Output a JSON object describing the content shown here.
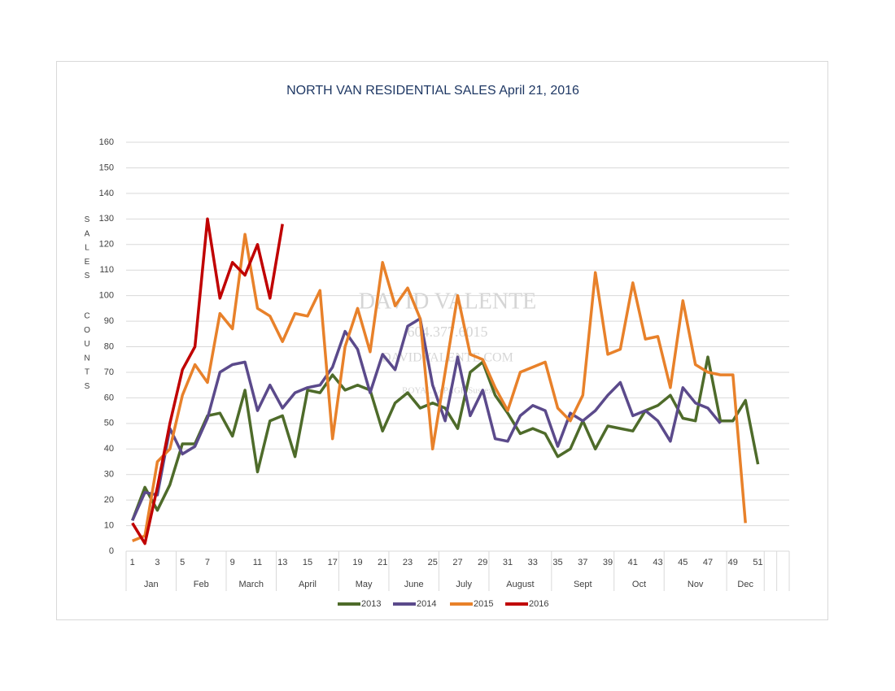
{
  "chart_data": {
    "type": "line",
    "title": "NORTH VAN RESIDENTIAL SALES April 21, 2016",
    "y_label": "SALES COUNTS",
    "watermark": [
      "DAVID VALENTE",
      "604.377.6015",
      "DAVIDVALENTE.COM",
      "ROYAL LePAGE Sussex"
    ],
    "categories": [
      1,
      null,
      3,
      null,
      5,
      null,
      7,
      null,
      9,
      null,
      11,
      null,
      13,
      null,
      15,
      null,
      17,
      null,
      19,
      null,
      21,
      null,
      23,
      null,
      25,
      null,
      27,
      null,
      29,
      null,
      31,
      null,
      33,
      null,
      35,
      null,
      37,
      null,
      39,
      null,
      41,
      null,
      43,
      null,
      45,
      null,
      47,
      null,
      49,
      null,
      51,
      null,
      null
    ],
    "months": [
      {
        "label": "Jan",
        "weeks": 4
      },
      {
        "label": "Feb",
        "weeks": 4
      },
      {
        "label": "March",
        "weeks": 4
      },
      {
        "label": "April",
        "weeks": 5
      },
      {
        "label": "May",
        "weeks": 4
      },
      {
        "label": "June",
        "weeks": 4
      },
      {
        "label": "July",
        "weeks": 4
      },
      {
        "label": "August",
        "weeks": 5
      },
      {
        "label": "Sept",
        "weeks": 5
      },
      {
        "label": "Oct",
        "weeks": 4
      },
      {
        "label": "Nov",
        "weeks": 5
      },
      {
        "label": "Dec",
        "weeks": 3
      },
      {
        "label": null,
        "weeks": 1
      },
      {
        "label": null,
        "weeks": 1
      }
    ],
    "ylim": [
      0,
      160
    ],
    "yticks": [
      0,
      10,
      20,
      30,
      40,
      50,
      60,
      70,
      80,
      90,
      100,
      110,
      120,
      130,
      140,
      150,
      160
    ],
    "grid": true,
    "legend": "bottom",
    "series": [
      {
        "name": "2013",
        "color": "#4e6b2a",
        "values": [
          12,
          25,
          16,
          26,
          42,
          42,
          53,
          54,
          45,
          63,
          31,
          51,
          53,
          37,
          63,
          62,
          69,
          63,
          65,
          63,
          47,
          58,
          62,
          56,
          58,
          56,
          48,
          70,
          74,
          61,
          54,
          46,
          48,
          46,
          37,
          40,
          51,
          40,
          49,
          48,
          47,
          55,
          57,
          61,
          52,
          51,
          76,
          51,
          51,
          59,
          34,
          null,
          null
        ]
      },
      {
        "name": "2014",
        "color": "#5b4a8b",
        "values": [
          12,
          23,
          22,
          48,
          38,
          41,
          52,
          70,
          73,
          74,
          55,
          65,
          56,
          62,
          64,
          65,
          72,
          86,
          79,
          62,
          77,
          71,
          88,
          91,
          65,
          51,
          76,
          53,
          63,
          44,
          43,
          53,
          57,
          55,
          41,
          54,
          51,
          55,
          61,
          66,
          53,
          55,
          51,
          43,
          64,
          58,
          56,
          50,
          null,
          null,
          null,
          null,
          null
        ]
      },
      {
        "name": "2015",
        "color": "#e8812a",
        "values": [
          4,
          6,
          35,
          40,
          61,
          73,
          66,
          93,
          87,
          124,
          95,
          92,
          82,
          93,
          92,
          102,
          44,
          80,
          95,
          78,
          113,
          96,
          103,
          91,
          40,
          70,
          100,
          77,
          75,
          64,
          55,
          70,
          72,
          74,
          56,
          51,
          61,
          109,
          77,
          79,
          105,
          83,
          84,
          64,
          98,
          73,
          70,
          69,
          69,
          11,
          null,
          null,
          null
        ]
      },
      {
        "name": "2016",
        "color": "#c00000",
        "values": [
          11,
          3,
          25,
          50,
          71,
          80,
          130,
          99,
          113,
          108,
          120,
          99,
          128,
          null,
          null,
          null,
          null,
          null,
          null,
          null,
          null,
          null,
          null,
          null,
          null,
          null,
          null,
          null,
          null,
          null,
          null,
          null,
          null,
          null,
          null,
          null,
          null,
          null,
          null,
          null,
          null,
          null,
          null,
          null,
          null,
          null,
          null,
          null,
          null,
          null,
          null,
          null,
          null
        ]
      }
    ]
  }
}
